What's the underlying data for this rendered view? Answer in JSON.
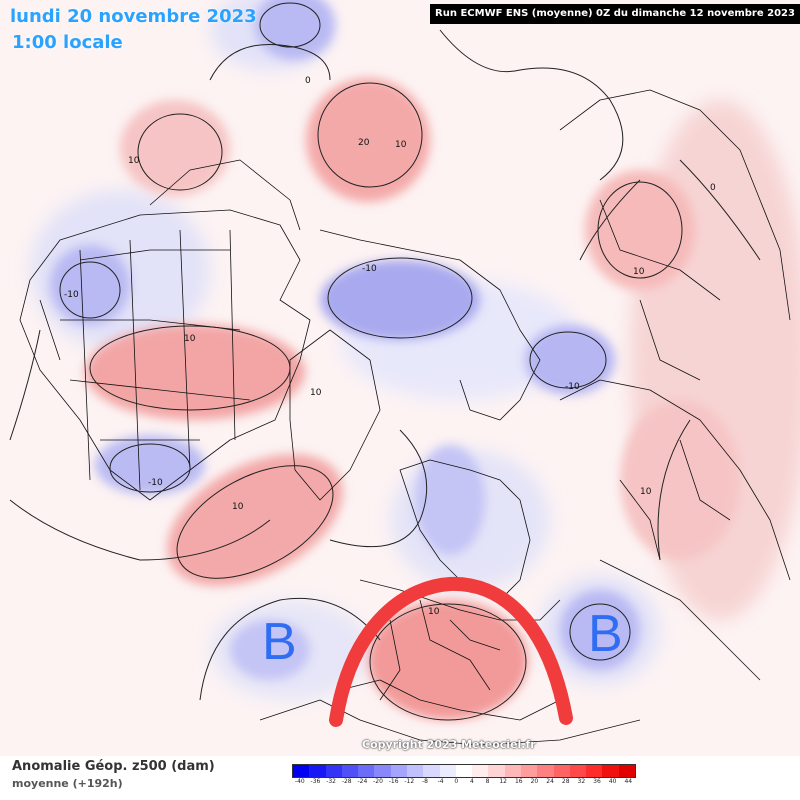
{
  "header": {
    "date": "lundi 20 novembre 2023",
    "local_time": "1:00 locale",
    "run_info": "Run ECMWF ENS (moyenne) 0Z du dimanche 12 novembre 2023"
  },
  "map": {
    "projection": "polar stereographic, northern hemisphere",
    "annotations": [
      {
        "text": "B",
        "meaning": "low-pressure anomaly (western Atlantic)",
        "color": "#2f6df2"
      },
      {
        "text": "B",
        "meaning": "low-pressure anomaly (eastern Mediterranean)",
        "color": "#2f6df2"
      }
    ],
    "highlight_arc": {
      "meaning": "ridge over western Mediterranean",
      "color": "#f03c3c"
    },
    "contour_labels": [
      "0",
      "10",
      "10",
      "20",
      "10",
      "0",
      "-10",
      "-10",
      "10",
      "-10",
      "10",
      "-10",
      "10",
      "10",
      "10"
    ]
  },
  "copyright": "Copyright 2023 Meteociel.fr",
  "footer": {
    "title": "Anomalie Géop. z500 (dam)",
    "subtitle": "moyenne   (+192h)"
  },
  "color_scale": {
    "ticks": [
      "-40",
      "-36",
      "-32",
      "-28",
      "-24",
      "-20",
      "-16",
      "-12",
      "-8",
      "-4",
      "0",
      "4",
      "8",
      "12",
      "16",
      "20",
      "24",
      "28",
      "32",
      "36",
      "40",
      "44"
    ],
    "colors": [
      "#0000f0",
      "#1818f4",
      "#3434f6",
      "#5050f8",
      "#6c6cfa",
      "#8888fb",
      "#a4a4fc",
      "#c0c0fd",
      "#d8d8fe",
      "#ececff",
      "#ffffff",
      "#ffecec",
      "#ffd4d4",
      "#ffb8b8",
      "#ff9c9c",
      "#ff8080",
      "#ff6464",
      "#ff4848",
      "#ff2c2c",
      "#f01010",
      "#e00000"
    ]
  },
  "colors": {
    "positive_anomaly": "#f6b3b3",
    "negative_anomaly": "#b4b4f4",
    "header_text": "#2aa3ff"
  }
}
